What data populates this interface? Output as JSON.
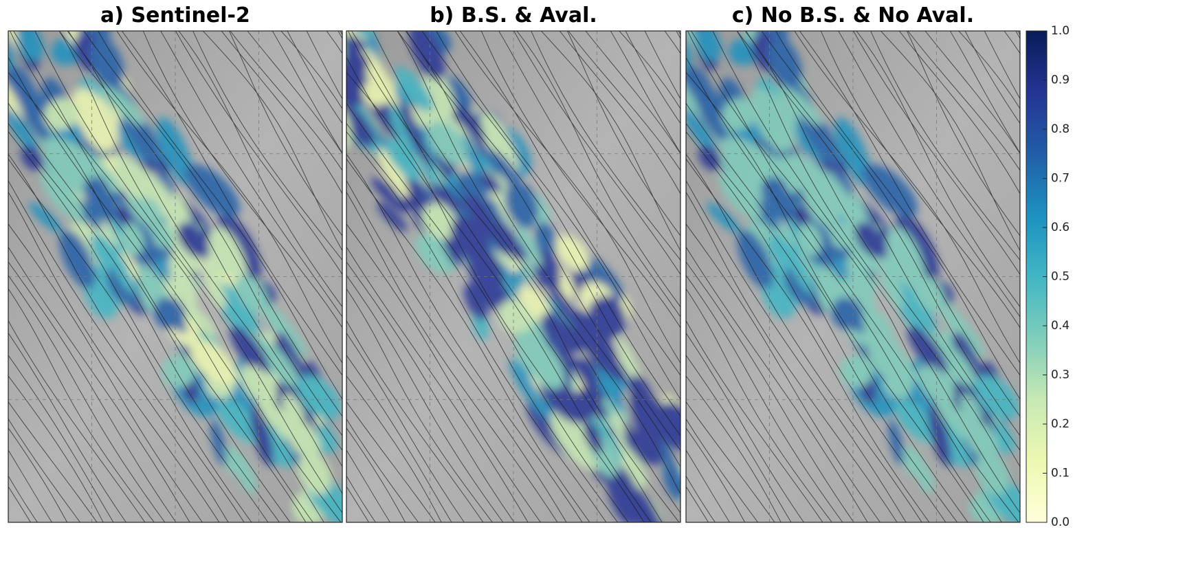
{
  "panels": [
    {
      "title": "a) Sentinel-2"
    },
    {
      "title": "b) B.S. & Aval."
    },
    {
      "title": "c) No B.S. & No Aval."
    }
  ],
  "colorbar": {
    "lim": [
      0,
      1
    ],
    "ticks": [
      {
        "value": 0,
        "label": "0.0"
      },
      0.1,
      0.2,
      0.3,
      0.4,
      0.5,
      0.6,
      0.7,
      0.8,
      0.9,
      {
        "value": 1,
        "label": "1.0"
      }
    ]
  }
}
